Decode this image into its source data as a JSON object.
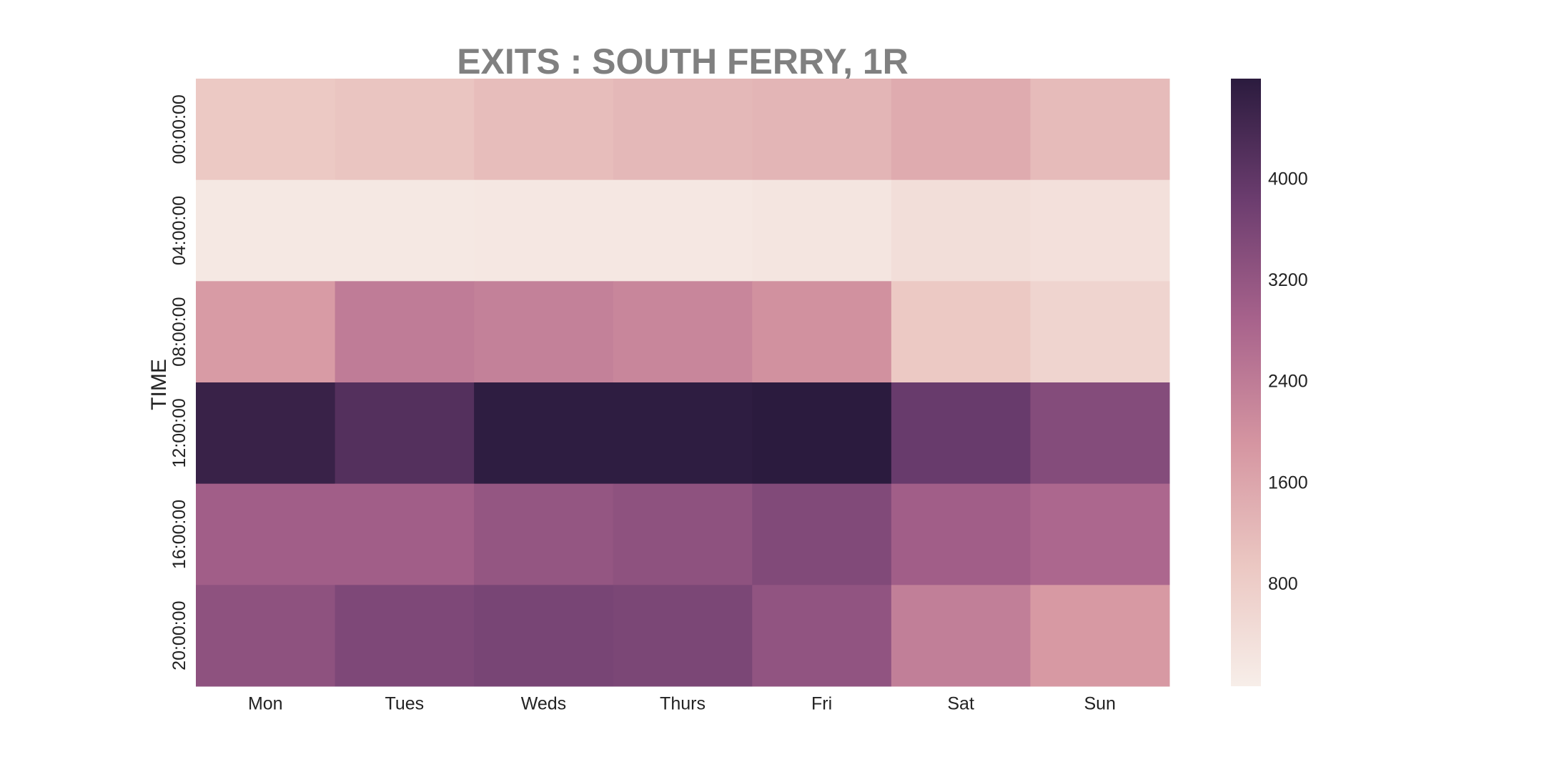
{
  "chart_data": {
    "type": "heatmap",
    "title": "EXITS : SOUTH FERRY, 1R",
    "xlabel": "",
    "ylabel": "TIME",
    "x_categories": [
      "Mon",
      "Tues",
      "Weds",
      "Thurs",
      "Fri",
      "Sat",
      "Sun"
    ],
    "y_categories": [
      "00:00:00",
      "04:00:00",
      "08:00:00",
      "12:00:00",
      "16:00:00",
      "20:00:00"
    ],
    "values": [
      [
        900,
        1000,
        1150,
        1250,
        1300,
        1500,
        1200
      ],
      [
        150,
        150,
        170,
        180,
        220,
        400,
        350
      ],
      [
        1800,
        2400,
        2300,
        2200,
        2000,
        900,
        650
      ],
      [
        4600,
        4200,
        4750,
        4750,
        4950,
        3900,
        3450
      ],
      [
        3000,
        3000,
        3200,
        3300,
        3500,
        3000,
        2800
      ],
      [
        3300,
        3550,
        3650,
        3600,
        3250,
        2350,
        1850
      ]
    ],
    "colorbar": {
      "range": [
        0,
        4800
      ],
      "ticks": [
        "800",
        "1600",
        "2400",
        "3200",
        "4000"
      ]
    },
    "colormap": [
      "#f7eee9",
      "#ebc7c2",
      "#d595a1",
      "#a8638c",
      "#6c3d6f",
      "#2b1b3e"
    ]
  }
}
